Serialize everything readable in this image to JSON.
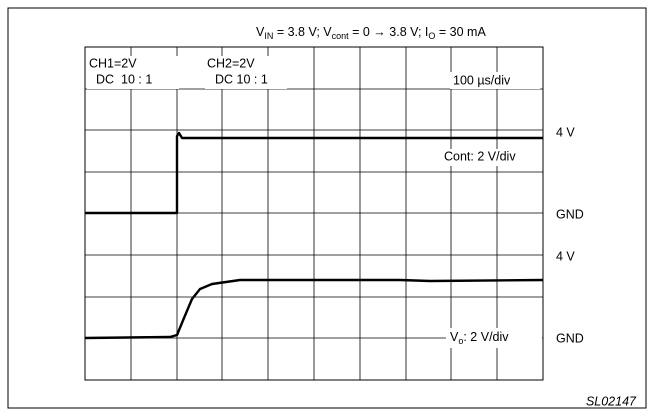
{
  "header": {
    "parts": [
      "V",
      "IN",
      " = 3.8 V; V",
      "cont",
      " = 0 → 3.8 V; I",
      "O",
      " = 30 mA"
    ]
  },
  "channels": [
    {
      "name": "CH1=2V",
      "coupling": "DC  10 : 1"
    },
    {
      "name": "CH2=2V",
      "coupling": "DC 10 : 1"
    }
  ],
  "timebase": "100 µs/div",
  "traces": [
    {
      "level": "4 V",
      "scale": "Cont: 2 V/div",
      "ground": "GND"
    },
    {
      "level": "4 V",
      "scale_parts": [
        "V",
        "o",
        ": 2 V/div"
      ],
      "ground": "GND"
    }
  ],
  "figure_id": "SL02147"
}
